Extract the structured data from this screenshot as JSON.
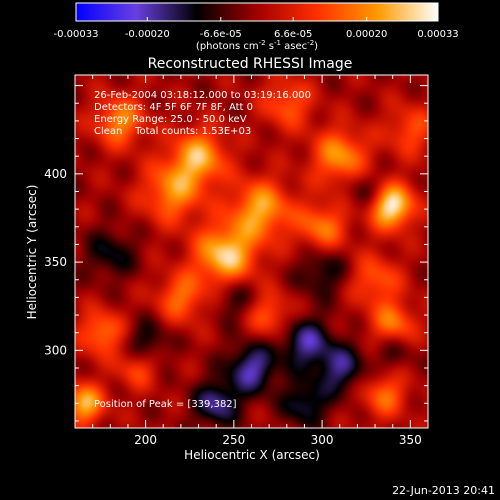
{
  "colorbar": {
    "ticks": [
      "-0.00033",
      "-0.00020",
      "-6.6e-05",
      "6.6e-05",
      "0.00020",
      "0.00033"
    ],
    "tick_values": [
      -0.00033,
      -0.0002,
      -6.6e-05,
      6.6e-05,
      0.0002,
      0.00033
    ],
    "range": [
      -0.00033,
      0.00033
    ],
    "units_text": "(photons cm",
    "units_sup1": "-2",
    "units_mid": " s",
    "units_sup2": "-1",
    "units_end": " asec",
    "units_sup3": "-2",
    "units_close": ")",
    "stops": [
      "#0000ff",
      "#6a3fe0",
      "#000000",
      "#a10000",
      "#ff3000",
      "#ff9a00",
      "#ffffff"
    ]
  },
  "chart_data": {
    "type": "heatmap",
    "title": "Reconstructed RHESSI Image",
    "xlabel": "Heliocentric X (arcsec)",
    "ylabel": "Heliocentric Y (arcsec)",
    "x_ticks": [
      "200",
      "250",
      "300",
      "350"
    ],
    "x_tick_values": [
      200,
      250,
      300,
      350
    ],
    "y_ticks": [
      "300",
      "350",
      "400"
    ],
    "y_tick_values": [
      300,
      350,
      400
    ],
    "xlim": [
      160,
      360
    ],
    "ylim": [
      256,
      456
    ],
    "annotations": [
      "26-Feb-2004 03:18:12.000 to 03:19:16.000",
      "Detectors: 4F 5F 6F 7F 8F, Att 0",
      "Energy Range: 25.0 - 50.0 keV",
      "Clean    Total counts: 1.53E+03"
    ],
    "peak_label": "Position of Peak = [339,382]",
    "peak": [
      339,
      382
    ],
    "sources": [
      {
        "x": 339,
        "y": 382,
        "amp": 1.0,
        "r": 9
      },
      {
        "x": 245,
        "y": 354,
        "amp": 0.85,
        "r": 12
      },
      {
        "x": 265,
        "y": 380,
        "amp": 0.7,
        "r": 12
      },
      {
        "x": 310,
        "y": 410,
        "amp": 0.65,
        "r": 11
      },
      {
        "x": 215,
        "y": 390,
        "amp": 0.6,
        "r": 12
      },
      {
        "x": 185,
        "y": 430,
        "amp": 0.6,
        "r": 10
      },
      {
        "x": 230,
        "y": 410,
        "amp": 0.7,
        "r": 11
      },
      {
        "x": 300,
        "y": 370,
        "amp": 0.55,
        "r": 10
      },
      {
        "x": 175,
        "y": 310,
        "amp": 0.55,
        "r": 9
      },
      {
        "x": 165,
        "y": 270,
        "amp": 0.75,
        "r": 8
      },
      {
        "x": 220,
        "y": 330,
        "amp": 0.5,
        "r": 10
      },
      {
        "x": 270,
        "y": 320,
        "amp": 0.45,
        "r": 9
      },
      {
        "x": 340,
        "y": 315,
        "amp": 0.55,
        "r": 9
      },
      {
        "x": 330,
        "y": 340,
        "amp": 0.45,
        "r": 10
      },
      {
        "x": 350,
        "y": 425,
        "amp": 0.4,
        "r": 10
      },
      {
        "x": 335,
        "y": 275,
        "amp": 0.5,
        "r": 9
      },
      {
        "x": 195,
        "y": 290,
        "amp": 0.4,
        "r": 8
      },
      {
        "x": 280,
        "y": 440,
        "amp": 0.45,
        "r": 10
      },
      {
        "x": 290,
        "y": 305,
        "amp": -0.55,
        "r": 10
      },
      {
        "x": 260,
        "y": 290,
        "amp": -0.6,
        "r": 10
      },
      {
        "x": 240,
        "y": 270,
        "amp": -0.55,
        "r": 9
      },
      {
        "x": 310,
        "y": 290,
        "amp": -0.5,
        "r": 10
      },
      {
        "x": 290,
        "y": 270,
        "amp": -0.45,
        "r": 9
      },
      {
        "x": 200,
        "y": 305,
        "amp": -0.35,
        "r": 9
      },
      {
        "x": 300,
        "y": 345,
        "amp": -0.35,
        "r": 10
      },
      {
        "x": 180,
        "y": 355,
        "amp": -0.35,
        "r": 10
      },
      {
        "x": 325,
        "y": 390,
        "amp": -0.3,
        "r": 9
      },
      {
        "x": 250,
        "y": 330,
        "amp": -0.3,
        "r": 9
      },
      {
        "x": 340,
        "y": 300,
        "amp": -0.25,
        "r": 8
      }
    ]
  },
  "footer": {
    "timestamp": "22-Jun-2013 20:41"
  }
}
